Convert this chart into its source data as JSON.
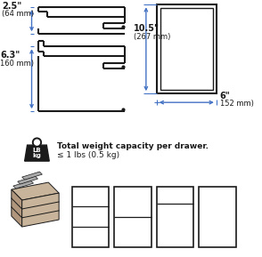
{
  "bg_color": "#ffffff",
  "dim_color": "#4472c4",
  "line_color": "#1a1a1a",
  "dim25_label": "2.5\"",
  "dim25_sub": "(64 mm)",
  "dim63_label": "6.3\"",
  "dim63_sub": "160 mm)",
  "dim105_label": "10.5\"",
  "dim105_sub": "(267 mm)",
  "dim6_label": "6\"",
  "dim6_sub": "152 mm)",
  "weight_line1": "Total weight capacity per drawer.",
  "weight_line2": "≤ 1 lbs (0.5 kg)"
}
